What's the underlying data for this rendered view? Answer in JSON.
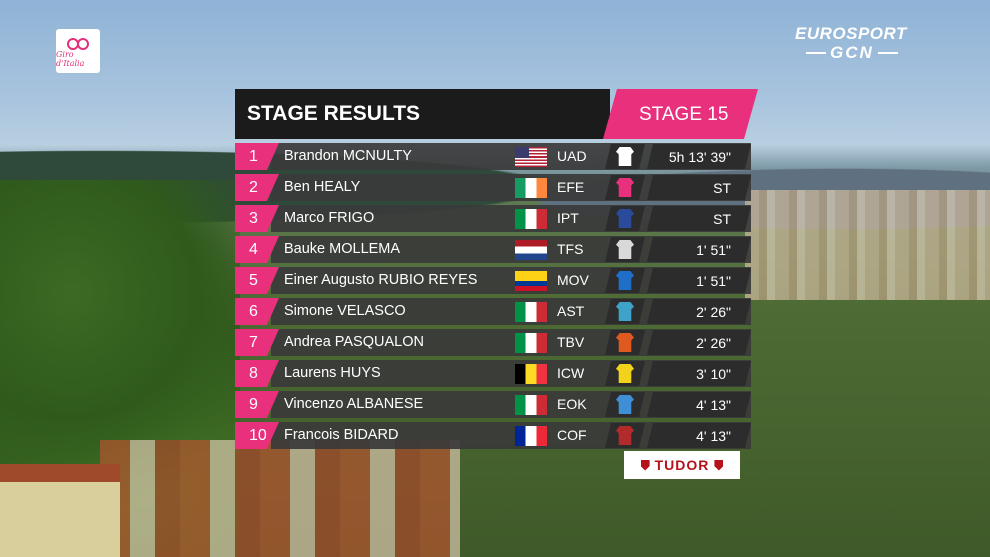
{
  "broadcast": {
    "giro_logo_text": "Giro d'Italia",
    "eurosport_text": "EUROSPORT",
    "gcn_text": "GCN",
    "sponsor_text": "TUDOR"
  },
  "header": {
    "title": "STAGE RESULTS",
    "stage_label": "STAGE 15"
  },
  "results": [
    {
      "rank": "1",
      "name": "Brandon MCNULTY",
      "flag": "us",
      "team": "UAD",
      "jersey_color": "#ffffff",
      "time": "5h 13' 39\""
    },
    {
      "rank": "2",
      "name": "Ben HEALY",
      "flag": "ie",
      "team": "EFE",
      "jersey_color": "#e8307c",
      "time": "ST"
    },
    {
      "rank": "3",
      "name": "Marco FRIGO",
      "flag": "it",
      "team": "IPT",
      "jersey_color": "#2a4a9c",
      "time": "ST"
    },
    {
      "rank": "4",
      "name": "Bauke MOLLEMA",
      "flag": "nl",
      "team": "TFS",
      "jersey_color": "#d9d9d9",
      "time": "1' 51\""
    },
    {
      "rank": "5",
      "name": "Einer Augusto RUBIO REYES",
      "flag": "co",
      "team": "MOV",
      "jersey_color": "#1f6fc9",
      "time": "1' 51\""
    },
    {
      "rank": "6",
      "name": "Simone VELASCO",
      "flag": "it",
      "team": "AST",
      "jersey_color": "#3fa3c9",
      "time": "2' 26\""
    },
    {
      "rank": "7",
      "name": "Andrea PASQUALON",
      "flag": "it",
      "team": "TBV",
      "jersey_color": "#e05a1f",
      "time": "2' 26\""
    },
    {
      "rank": "8",
      "name": "Laurens HUYS",
      "flag": "be",
      "team": "ICW",
      "jersey_color": "#f2d21b",
      "time": "3' 10\""
    },
    {
      "rank": "9",
      "name": "Vincenzo ALBANESE",
      "flag": "it",
      "team": "EOK",
      "jersey_color": "#3f8fd6",
      "time": "4' 13\""
    },
    {
      "rank": "10",
      "name": "Francois BIDARD",
      "flag": "fr",
      "team": "COF",
      "jersey_color": "#b32a2a",
      "time": "4' 13\""
    }
  ]
}
